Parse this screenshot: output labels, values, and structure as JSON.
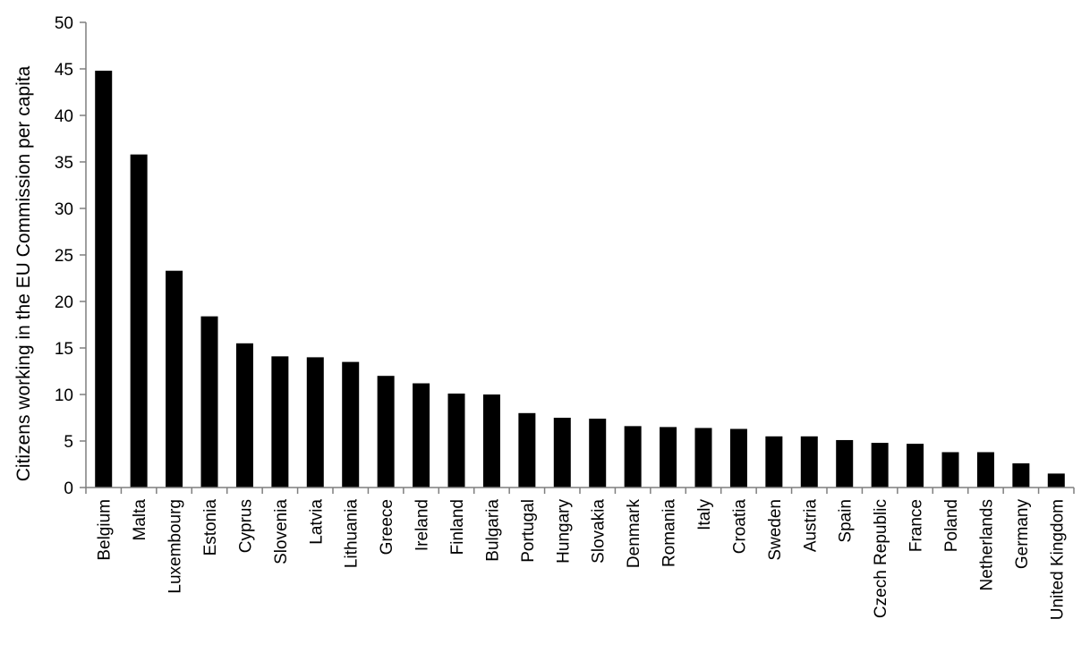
{
  "chart_data": {
    "type": "bar",
    "title": "",
    "xlabel": "",
    "ylabel": "Citizens working in the EU Commission per capita",
    "ylim": [
      0,
      50
    ],
    "yticks": [
      0,
      5,
      10,
      15,
      20,
      25,
      30,
      35,
      40,
      45,
      50
    ],
    "grid": false,
    "legend": "none",
    "bar_color": "#000000",
    "axis_color": "#7f7f7f",
    "categories": [
      "Belgium",
      "Malta",
      "Luxembourg",
      "Estonia",
      "Cyprus",
      "Slovenia",
      "Latvia",
      "Lithuania",
      "Greece",
      "Ireland",
      "Finland",
      "Bulgaria",
      "Portugal",
      "Hungary",
      "Slovakia",
      "Denmark",
      "Romania",
      "Italy",
      "Croatia",
      "Sweden",
      "Austria",
      "Spain",
      "Czech Republic",
      "France",
      "Poland",
      "Netherlands",
      "Germany",
      "United Kingdom"
    ],
    "values": [
      44.8,
      35.8,
      23.3,
      18.4,
      15.5,
      14.1,
      14.0,
      13.5,
      12.0,
      11.2,
      10.1,
      10.0,
      8.0,
      7.5,
      7.4,
      6.6,
      6.5,
      6.4,
      6.3,
      5.5,
      5.5,
      5.1,
      4.8,
      4.7,
      3.8,
      3.8,
      2.6,
      1.5
    ]
  }
}
